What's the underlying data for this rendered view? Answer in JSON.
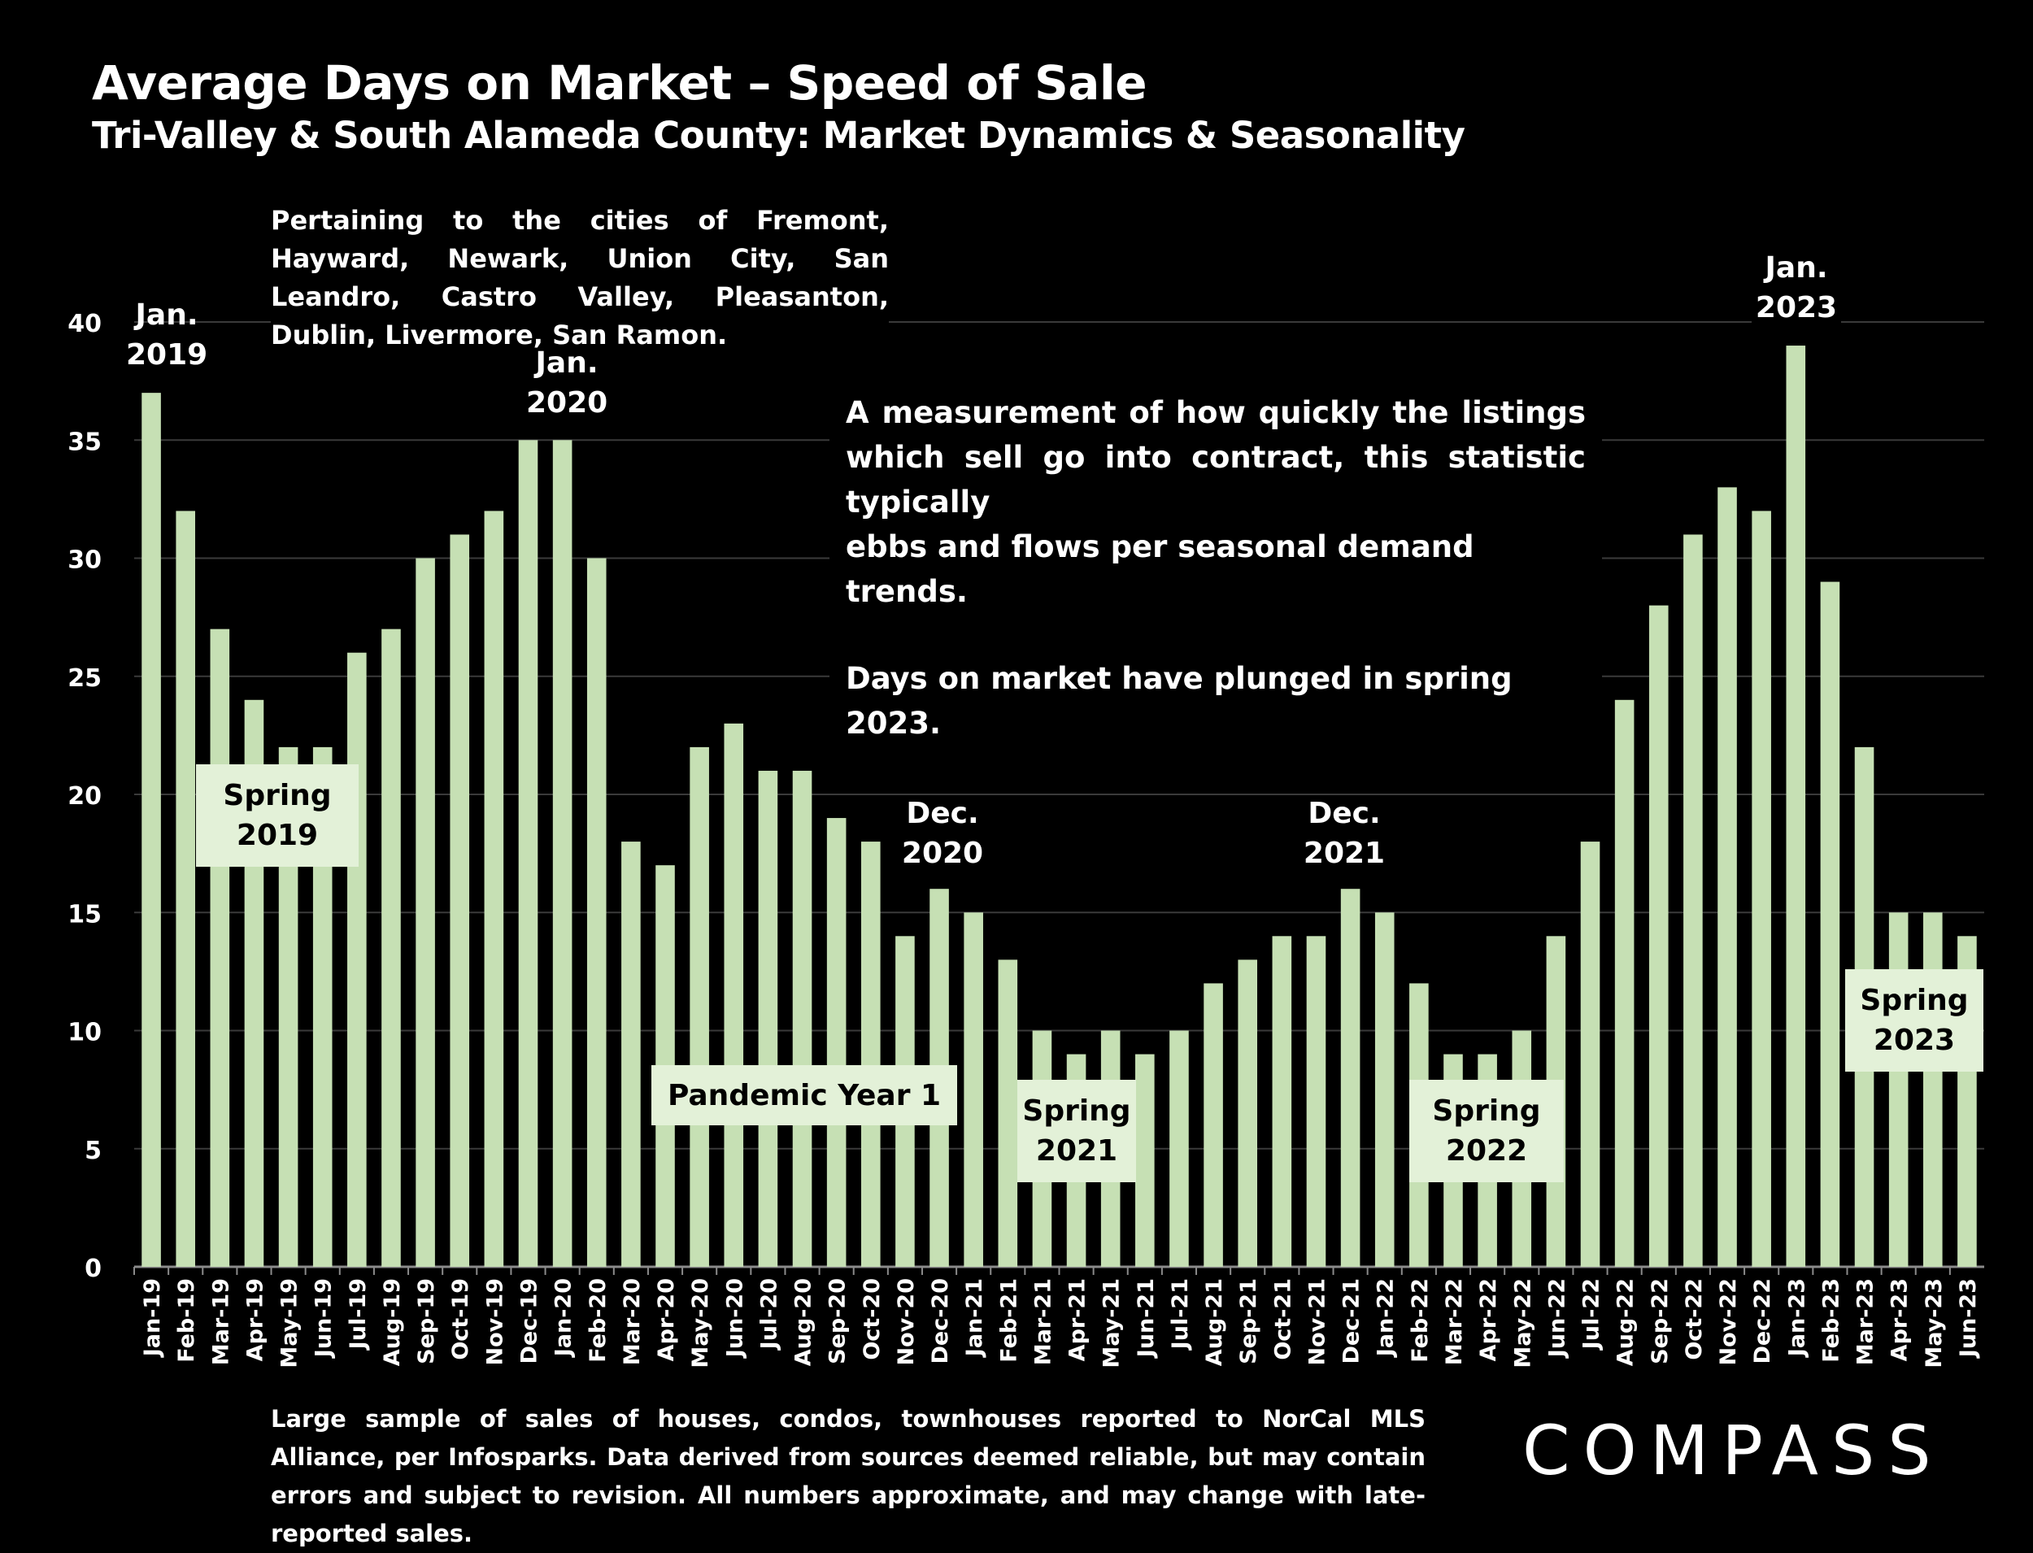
{
  "title": "Average Days on Market – Speed of Sale",
  "subtitle": "Tri-Valley & South Alameda County: Market Dynamics & Seasonality",
  "note_cities": "Pertaining to the cities of Fremont, Hayward, Newark, Union City, San Leandro, Castro Valley, Pleasanton, Dublin, Livermore, San Ramon.",
  "measure_line1": "A measurement of how quickly the listings",
  "measure_line2": "which sell go into contract, this statistic typically",
  "measure_line3": "ebbs and flows per seasonal demand trends.",
  "measure_line4": "Days on market have plunged in spring 2023.",
  "footnote": "Large sample of sales of houses, condos, townhouses reported to NorCal MLS Alliance, per Infosparks. Data derived from sources deemed reliable, but may contain errors and subject to revision. All numbers approximate, and may change with late-reported sales.",
  "logo": "COMPASS",
  "annotations": {
    "jan2019": "Jan.\n2019",
    "jan2020": "Jan.\n2020",
    "dec2020": "Dec.\n2020",
    "dec2021": "Dec.\n2021",
    "jan2023": "Jan.\n2023"
  },
  "boxes": {
    "spring2019": "Spring\n2019",
    "pandemic": "Pandemic Year 1",
    "spring2021": "Spring\n2021",
    "spring2022": "Spring\n2022",
    "spring2023": "Spring\n2023"
  },
  "colors": {
    "bar": "#c6e0b4",
    "box": "#e3f1d8",
    "grid": "#3a3a3a",
    "axis": "#8a8a8a",
    "background": "#000000"
  },
  "chart_data": {
    "type": "bar",
    "title": "Average Days on Market – Speed of Sale",
    "subtitle": "Tri-Valley & South Alameda County: Market Dynamics & Seasonality",
    "ylim": [
      0,
      40
    ],
    "yticks": [
      0,
      5,
      10,
      15,
      20,
      25,
      30,
      35,
      40
    ],
    "grid": true,
    "categories": [
      "Jan-19",
      "Feb-19",
      "Mar-19",
      "Apr-19",
      "May-19",
      "Jun-19",
      "Jul-19",
      "Aug-19",
      "Sep-19",
      "Oct-19",
      "Nov-19",
      "Dec-19",
      "Jan-20",
      "Feb-20",
      "Mar-20",
      "Apr-20",
      "May-20",
      "Jun-20",
      "Jul-20",
      "Aug-20",
      "Sep-20",
      "Oct-20",
      "Nov-20",
      "Dec-20",
      "Jan-21",
      "Feb-21",
      "Mar-21",
      "Apr-21",
      "May-21",
      "Jun-21",
      "Jul-21",
      "Aug-21",
      "Sep-21",
      "Oct-21",
      "Nov-21",
      "Dec-21",
      "Jan-22",
      "Feb-22",
      "Mar-22",
      "Apr-22",
      "May-22",
      "Jun-22",
      "Jul-22",
      "Aug-22",
      "Sep-22",
      "Oct-22",
      "Nov-22",
      "Dec-22",
      "Jan-23",
      "Feb-23",
      "Mar-23",
      "Apr-23",
      "May-23",
      "Jun-23"
    ],
    "values": [
      37,
      32,
      27,
      24,
      22,
      22,
      26,
      27,
      30,
      31,
      32,
      35,
      35,
      30,
      18,
      17,
      22,
      23,
      21,
      21,
      19,
      18,
      14,
      16,
      15,
      13,
      10,
      9,
      10,
      9,
      10,
      12,
      13,
      14,
      14,
      16,
      15,
      12,
      9,
      9,
      10,
      14,
      18,
      24,
      28,
      31,
      33,
      32,
      39,
      29,
      22,
      15,
      15,
      14
    ]
  }
}
